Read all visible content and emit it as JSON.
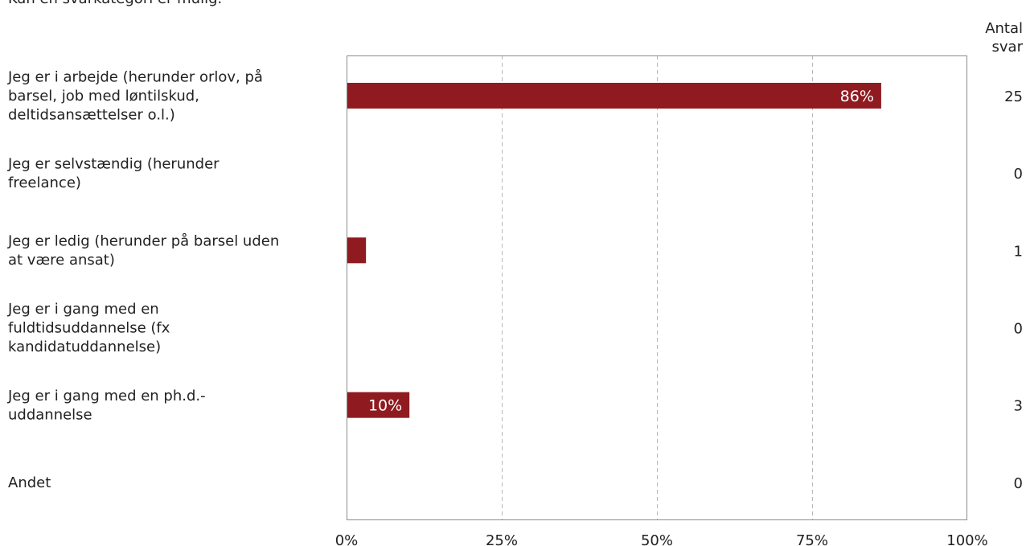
{
  "chart_data": {
    "type": "bar",
    "orientation": "horizontal",
    "subtitle": "Kun én svarkategori er mulig.",
    "count_header": [
      "Antal",
      "svar"
    ],
    "categories": [
      [
        "Jeg er i arbejde (herunder orlov, på",
        "barsel, job med løntilskud,",
        "deltidsansættelser o.l.)"
      ],
      [
        "Jeg er selvstændig (herunder",
        "freelance)"
      ],
      [
        "Jeg er ledig (herunder på barsel uden",
        "at være ansat)"
      ],
      [
        "Jeg er i gang med en",
        "fuldtidsuddannelse (fx",
        "kandidatuddannelse)"
      ],
      [
        "Jeg er i gang med en ph.d.-",
        "uddannelse"
      ],
      [
        "Andet"
      ]
    ],
    "values": [
      86,
      0,
      3,
      0,
      10,
      0
    ],
    "value_labels": [
      "86%",
      "",
      "",
      "",
      "10%",
      ""
    ],
    "counts": [
      25,
      0,
      1,
      0,
      3,
      0
    ],
    "xlim": [
      0,
      100
    ],
    "x_ticks": [
      "0%",
      "25%",
      "50%",
      "75%",
      "100%"
    ],
    "x_tick_values": [
      0,
      25,
      50,
      75,
      100
    ],
    "grid": "vertical dashed",
    "bar_color": "#8f1b20",
    "label_color": "#ffffff"
  }
}
